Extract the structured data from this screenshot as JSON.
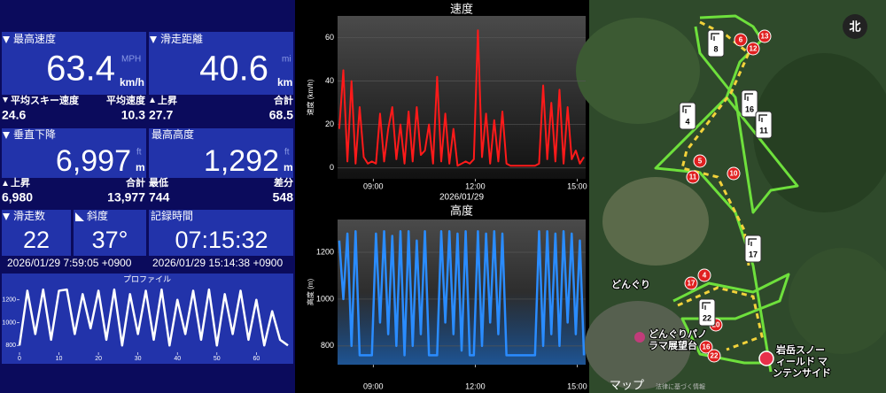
{
  "stats": {
    "max_speed": {
      "label": "最高速度",
      "value": "63.4",
      "unit_alt": "MPH",
      "unit": "km/h"
    },
    "distance": {
      "label": "滑走距離",
      "value": "40.6",
      "unit_alt": "mi",
      "unit": "km"
    },
    "avg_ski_speed": {
      "label": "平均スキー速度",
      "value": "24.6"
    },
    "avg_speed": {
      "label": "平均速度",
      "value": "10.3"
    },
    "ascent_distance": {
      "label": "上昇",
      "value": "27.7"
    },
    "total_distance": {
      "label": "合計",
      "value": "68.5"
    },
    "vertical_descent": {
      "label": "垂直下降",
      "value": "6,997",
      "unit_alt": "ft",
      "unit": "m"
    },
    "max_altitude": {
      "label": "最高高度",
      "value": "1,292",
      "unit_alt": "ft",
      "unit": "m"
    },
    "vertical_ascent": {
      "label": "上昇",
      "value": "6,980"
    },
    "vertical_total": {
      "label": "合計",
      "value": "13,977"
    },
    "min_altitude": {
      "label": "最低",
      "value": "744"
    },
    "altitude_diff": {
      "label": "差分",
      "value": "548"
    },
    "runs": {
      "label": "滑走数",
      "value": "22"
    },
    "slope": {
      "label": "斜度",
      "value": "37°"
    },
    "duration": {
      "label": "記録時間",
      "value": "07:15:32"
    },
    "start_time": "2026/01/29 7:59:05 +0900",
    "end_time": "2026/01/29 15:14:38 +0900"
  },
  "chart_data": [
    {
      "type": "line",
      "title": "プロファイル",
      "x": [
        0,
        2,
        4,
        6,
        8,
        10,
        12,
        14,
        16,
        18,
        20,
        22,
        24,
        26,
        28,
        30,
        32,
        34,
        36,
        38,
        40,
        42,
        44,
        46,
        48,
        50,
        52,
        54,
        56,
        58,
        60,
        62,
        64,
        66,
        68
      ],
      "values": [
        800,
        1280,
        900,
        1290,
        850,
        1280,
        1290,
        900,
        1250,
        950,
        1280,
        850,
        1290,
        800,
        1250,
        900,
        1280,
        850,
        1290,
        800,
        1200,
        900,
        1280,
        850,
        1290,
        800,
        1250,
        900,
        1280,
        850,
        1200,
        800,
        1100,
        850,
        800
      ],
      "color": "#ffffff",
      "xlim": [
        0,
        68
      ],
      "ylim": [
        740,
        1330
      ],
      "xticks": [
        0,
        10,
        20,
        30,
        40,
        50,
        60
      ],
      "yticks": [
        800,
        1000,
        1200
      ],
      "grid": false
    },
    {
      "type": "line",
      "title": "速度",
      "y_label": "速度 (km/h)",
      "x_label": "2026/01/29",
      "x": [
        8.0,
        8.12,
        8.24,
        8.36,
        8.48,
        8.6,
        8.72,
        8.84,
        8.96,
        9.08,
        9.2,
        9.32,
        9.44,
        9.56,
        9.68,
        9.8,
        9.92,
        10.04,
        10.16,
        10.28,
        10.4,
        10.52,
        10.64,
        10.76,
        10.88,
        11.0,
        11.12,
        11.24,
        11.36,
        11.48,
        11.6,
        11.72,
        11.84,
        11.96,
        12.08,
        12.2,
        12.32,
        12.44,
        12.56,
        12.68,
        12.8,
        12.92,
        13.04,
        13.16,
        13.28,
        13.4,
        13.52,
        13.64,
        13.76,
        13.88,
        14.0,
        14.12,
        14.24,
        14.36,
        14.48,
        14.6,
        14.72,
        14.84,
        14.96,
        15.08,
        15.2
      ],
      "values": [
        18,
        45,
        3,
        40,
        2,
        28,
        5,
        2,
        3,
        2,
        25,
        3,
        18,
        28,
        4,
        20,
        2,
        26,
        3,
        28,
        6,
        8,
        20,
        2,
        42,
        3,
        25,
        2,
        18,
        1,
        2,
        3,
        2,
        4,
        63.4,
        5,
        25,
        2,
        22,
        3,
        26,
        2,
        1,
        1,
        1,
        1,
        1,
        1,
        1,
        2,
        38,
        4,
        30,
        3,
        36,
        2,
        28,
        4,
        8,
        2,
        5
      ],
      "color": "#ff1a1a",
      "xlim": [
        7.95,
        15.25
      ],
      "ylim": [
        -5,
        70
      ],
      "xticks": [
        {
          "value": 9,
          "label": "09:00"
        },
        {
          "value": 12,
          "label": "12:00"
        },
        {
          "value": 15,
          "label": "15:00"
        }
      ],
      "yticks": [
        0,
        20,
        40,
        60
      ],
      "grid": true
    },
    {
      "type": "line",
      "title": "高度",
      "y_label": "高度 (m)",
      "x": [
        8.0,
        8.12,
        8.24,
        8.36,
        8.48,
        8.6,
        8.72,
        8.84,
        8.96,
        9.08,
        9.2,
        9.32,
        9.44,
        9.56,
        9.68,
        9.8,
        9.92,
        10.04,
        10.16,
        10.28,
        10.4,
        10.52,
        10.64,
        10.76,
        10.88,
        11.0,
        11.12,
        11.24,
        11.36,
        11.48,
        11.6,
        11.72,
        11.84,
        11.96,
        12.08,
        12.2,
        12.32,
        12.44,
        12.56,
        12.68,
        12.8,
        12.92,
        13.04,
        13.16,
        13.28,
        13.4,
        13.52,
        13.64,
        13.76,
        13.88,
        14.0,
        14.12,
        14.24,
        14.36,
        14.48,
        14.6,
        14.72,
        14.84,
        14.96,
        15.08,
        15.2
      ],
      "values": [
        1250,
        1000,
        1280,
        800,
        1290,
        760,
        760,
        760,
        760,
        1280,
        900,
        1290,
        850,
        1270,
        800,
        1290,
        760,
        1290,
        800,
        1250,
        850,
        1290,
        760,
        760,
        760,
        1290,
        900,
        1290,
        850,
        1280,
        780,
        1290,
        760,
        760,
        1290,
        800,
        1280,
        900,
        1290,
        850,
        1280,
        760,
        760,
        760,
        760,
        760,
        760,
        760,
        760,
        1290,
        800,
        1290,
        850,
        1280,
        800,
        1290,
        900,
        1280,
        850,
        1250,
        760
      ],
      "color": "#2a8cff",
      "xlim": [
        7.95,
        15.25
      ],
      "ylim": [
        720,
        1340
      ],
      "xticks": [
        {
          "value": 9,
          "label": "09:00"
        },
        {
          "value": 12,
          "label": "12:00"
        },
        {
          "value": 15,
          "label": "15:00"
        }
      ],
      "yticks": [
        800,
        1000,
        1200
      ],
      "grid": true
    }
  ],
  "map": {
    "compass": "北",
    "points": [
      "6",
      "12",
      "13",
      "5",
      "11",
      "10",
      "17",
      "4",
      "20",
      "16",
      "22"
    ],
    "signs": [
      "8",
      "16",
      "4",
      "11",
      "17",
      "22"
    ],
    "places": [
      [
        "どんぐり"
      ],
      [
        "どんぐりパノ",
        "ラマ展望台"
      ],
      [
        "岩岳スノー",
        "ィールド マ",
        "ンテンサイド"
      ]
    ],
    "footer": "マップ",
    "legal": "法律に基づく情報"
  }
}
